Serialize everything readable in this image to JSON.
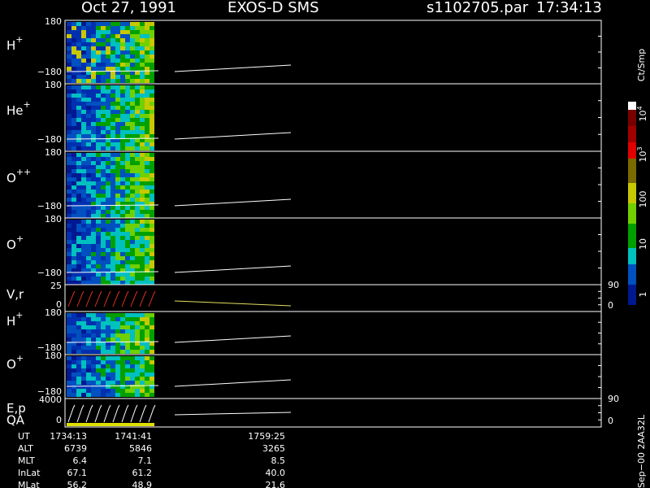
{
  "header": {
    "date": "Oct 27, 1991",
    "mission": "EXOS-D SMS",
    "file": "s1102705.par",
    "time": "17:34:13"
  },
  "panels": [
    {
      "label": "H",
      "sup": "+",
      "ticks": [
        "180",
        "−180"
      ]
    },
    {
      "label": "He",
      "sup": "+",
      "ticks": [
        "180",
        "−180"
      ]
    },
    {
      "label": "O",
      "sup": "++",
      "ticks": [
        "180",
        "−180"
      ]
    },
    {
      "label": "O",
      "sup": "+",
      "ticks": [
        "180",
        "−180"
      ]
    },
    {
      "label": "V,r",
      "ticks": [
        "25",
        "0"
      ],
      "right_ticks": [
        "90",
        "0"
      ]
    },
    {
      "label": "H",
      "sup": "+",
      "ticks": [
        "180",
        "−180"
      ]
    },
    {
      "label": "O",
      "sup": "+",
      "ticks": [
        "180",
        "−180"
      ]
    },
    {
      "label": "E,p",
      "label2": "QA",
      "ticks": [
        "4000",
        "0"
      ],
      "right_ticks": [
        "90",
        "0"
      ]
    }
  ],
  "colorbar": {
    "unit": "Ct/Smp",
    "labels": [
      {
        "base": "10",
        "exp": "4"
      },
      {
        "base": "10",
        "exp": "3"
      },
      {
        "base": "100"
      },
      {
        "base": "10"
      },
      {
        "base": "1"
      }
    ]
  },
  "footer": {
    "rows": [
      [
        "UT",
        "1734:13",
        "1741:41",
        "1759:25"
      ],
      [
        "ALT",
        "6739",
        "5846",
        "3265"
      ],
      [
        "MLT",
        "6.4",
        "7.1",
        "8.5"
      ],
      [
        "InLat",
        "67.1",
        "61.2",
        "40.0"
      ],
      [
        "MLat",
        "56.2",
        "48.9",
        "21.6"
      ]
    ]
  },
  "side_note": "Sep−00 2AA32L"
}
